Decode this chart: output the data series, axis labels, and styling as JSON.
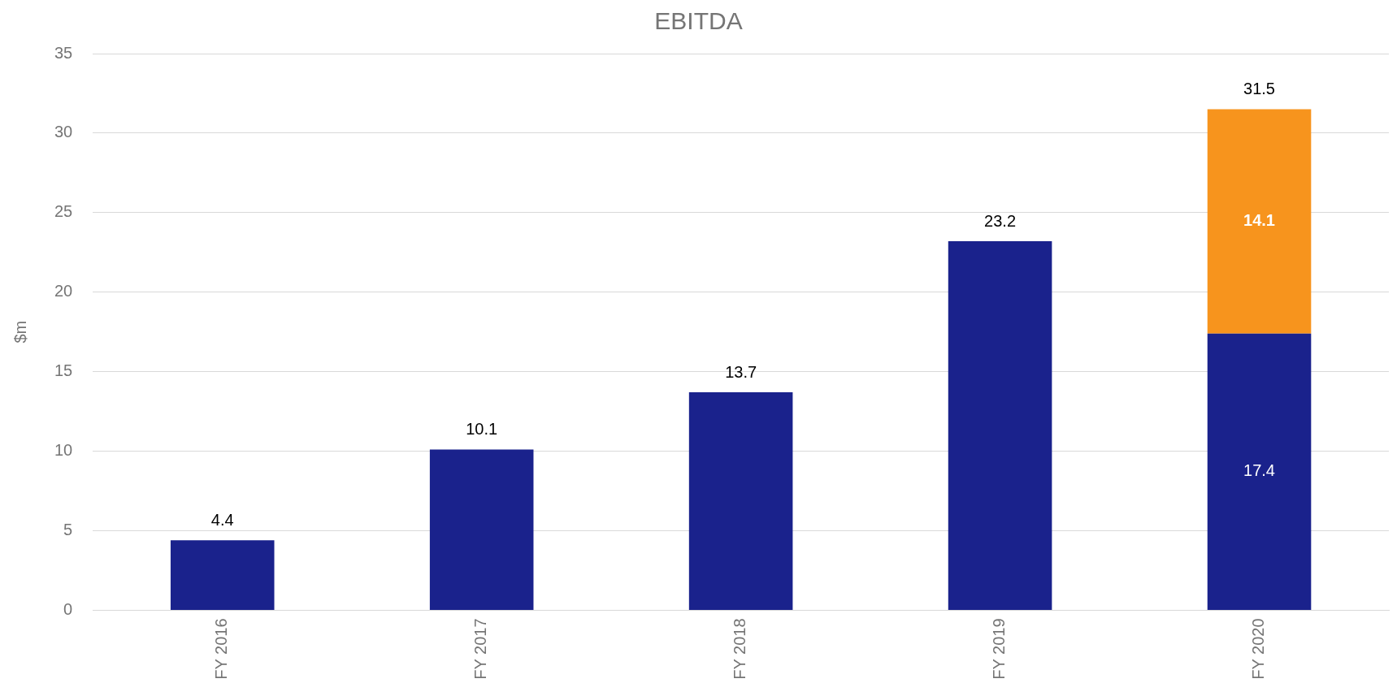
{
  "chart_data": {
    "type": "bar",
    "title": "EBITDA",
    "ylabel": "$m",
    "categories": [
      "FY 2016",
      "FY 2017",
      "FY 2018",
      "FY 2019",
      "FY 2020"
    ],
    "series": [
      {
        "color": "#1a228c",
        "values": [
          4.4,
          10.1,
          13.7,
          23.2,
          17.4
        ]
      },
      {
        "color": "#f7941d",
        "values": [
          null,
          null,
          null,
          null,
          14.1
        ]
      }
    ],
    "stacked": true,
    "ylim": [
      0,
      35
    ],
    "yticks": [
      0,
      5,
      10,
      15,
      20,
      25,
      30,
      35
    ],
    "grid": "y",
    "legend": false,
    "data_labels": true,
    "totals": [
      null,
      null,
      null,
      null,
      "31.5"
    ]
  }
}
